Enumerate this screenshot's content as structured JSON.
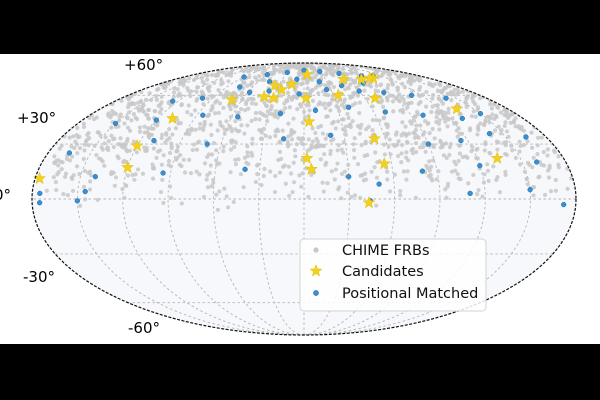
{
  "chart_data": {
    "type": "scatter",
    "projection": "mollweide",
    "title": "",
    "xlabel": "",
    "ylabel": "",
    "grid": true,
    "y_ticks": [
      {
        "lat": 60,
        "label": "+60°"
      },
      {
        "lat": 30,
        "label": "+30°"
      },
      {
        "lat": 0,
        "label": "0°"
      },
      {
        "lat": -30,
        "label": "-30°"
      },
      {
        "lat": -60,
        "label": "-60°"
      }
    ],
    "legend": {
      "placement": "lower-right",
      "entries": [
        "CHIME FRBs",
        "Candidates",
        "Positional Matched"
      ]
    },
    "colors": {
      "chime": "#c8c8c8",
      "candidates": "#f2d21c",
      "matched": "#3a8fd0"
    },
    "series": [
      {
        "name": "CHIME FRBs",
        "marker": "dot",
        "note_density": "approx. 1500 points, dense between dec +10° and +85°, sparse down to about -5°"
      },
      {
        "name": "Candidates",
        "marker": "star",
        "points": [
          [
            -100,
            73
          ],
          [
            -95,
            73
          ],
          [
            -80,
            72
          ],
          [
            -55,
            72
          ],
          [
            -5,
            76
          ],
          [
            15,
            68
          ],
          [
            25,
            64
          ],
          [
            35,
            67
          ],
          [
            30,
            58
          ],
          [
            40,
            59
          ],
          [
            -70,
            58
          ],
          [
            -35,
            60
          ],
          [
            -2,
            58
          ],
          [
            70,
            57
          ],
          [
            -135,
            51
          ],
          [
            108,
            45
          ],
          [
            -4,
            43
          ],
          [
            -52,
            33
          ],
          [
            120,
            29
          ],
          [
            -134,
            22
          ],
          [
            -55,
            19
          ],
          [
            -2,
            22
          ],
          [
            120,
            17
          ],
          [
            177,
            11
          ],
          [
            -5,
            16
          ],
          [
            -43,
            -2
          ]
        ]
      },
      {
        "name": "Positional Matched",
        "marker": "dot",
        "points": [
          [
            -108,
            75
          ],
          [
            -90,
            75
          ],
          [
            -60,
            77
          ],
          [
            -30,
            79
          ],
          [
            0,
            80
          ],
          [
            30,
            78
          ],
          [
            60,
            76
          ],
          [
            90,
            74
          ],
          [
            -75,
            69
          ],
          [
            -45,
            67
          ],
          [
            -20,
            70
          ],
          [
            10,
            72
          ],
          [
            45,
            70
          ],
          [
            75,
            66
          ],
          [
            -140,
            58
          ],
          [
            -110,
            60
          ],
          [
            -85,
            62
          ],
          [
            -60,
            63
          ],
          [
            -25,
            64
          ],
          [
            5,
            61
          ],
          [
            38,
            63
          ],
          [
            58,
            62
          ],
          [
            100,
            58
          ],
          [
            125,
            56
          ],
          [
            -150,
            48
          ],
          [
            -130,
            45
          ],
          [
            -100,
            47
          ],
          [
            -70,
            49
          ],
          [
            -40,
            52
          ],
          [
            -10,
            50
          ],
          [
            20,
            48
          ],
          [
            55,
            46
          ],
          [
            85,
            47
          ],
          [
            120,
            44
          ],
          [
            150,
            42
          ],
          [
            -165,
            34
          ],
          [
            -140,
            36
          ],
          [
            -115,
            32
          ],
          [
            -90,
            30
          ],
          [
            -20,
            35
          ],
          [
            15,
            33
          ],
          [
            70,
            30
          ],
          [
            110,
            32
          ],
          [
            165,
            25
          ],
          [
            -160,
            20
          ],
          [
            -120,
            18
          ],
          [
            -80,
            15
          ],
          [
            -30,
            12
          ],
          [
            40,
            16
          ],
          [
            95,
            14
          ],
          [
            140,
            12
          ],
          [
            -150,
            5
          ],
          [
            -110,
            3
          ],
          [
            -50,
            8
          ],
          [
            145,
            4
          ],
          [
            175,
            3
          ],
          [
            -172,
            -3
          ],
          [
            -44,
            -1
          ],
          [
            150,
            -1
          ],
          [
            175,
            -2
          ]
        ]
      }
    ]
  }
}
